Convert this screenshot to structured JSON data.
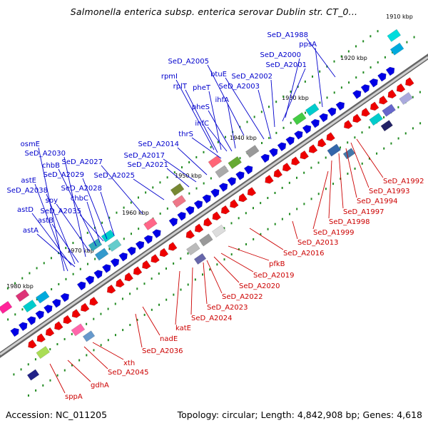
{
  "title": "Salmonella enterica subsp. enterica serovar Dublin str. CT_0...",
  "accession": "Accession: NC_011205",
  "summary": "Topology: circular; Length: 4,842,908 bp; Genes: 4,618",
  "colors": {
    "forward_label": "#0000cc",
    "reverse_label": "#cc0000",
    "forward_gene": "#0000e6",
    "reverse_gene": "#ee0000",
    "backbone": "#888888",
    "tick": "#228b22"
  },
  "ticks": [
    "1910 kbp",
    "1920 kbp",
    "1930 kbp",
    "1940 kbp",
    "1950 kbp",
    "1960 kbp",
    "1970 kbp",
    "1980 kbp"
  ],
  "forward_labels": [
    "SeD_A1988",
    "ppsA",
    "SeD_A2000",
    "SeD_A2001",
    "SeD_A2005",
    "btuE",
    "SeD_A2002",
    "rpmI",
    "rplT",
    "pheT",
    "SeD_A2003",
    "ihfA",
    "pheS",
    "infC",
    "thrS",
    "SeD_A2014",
    "SeD_A2017",
    "SeD_A2021",
    "SeD_A2027",
    "SeD_A2025",
    "osmE",
    "SeD_A2030",
    "chbB",
    "SeD_A2029",
    "astE",
    "SeD_A2028",
    "SeD_A2038",
    "spy",
    "chbC",
    "astD",
    "SeD_A2035",
    "astB",
    "astA"
  ],
  "reverse_labels": [
    "SeD_A1992",
    "SeD_A1993",
    "SeD_A1994",
    "SeD_A1997",
    "SeD_A1998",
    "SeD_A1999",
    "SeD_A2013",
    "SeD_A2016",
    "pfkB",
    "SeD_A2019",
    "SeD_A2020",
    "SeD_A2022",
    "SeD_A2023",
    "SeD_A2024",
    "katE",
    "nadE",
    "SeD_A2036",
    "xth",
    "SeD_A2045",
    "gdhA",
    "sppA"
  ]
}
